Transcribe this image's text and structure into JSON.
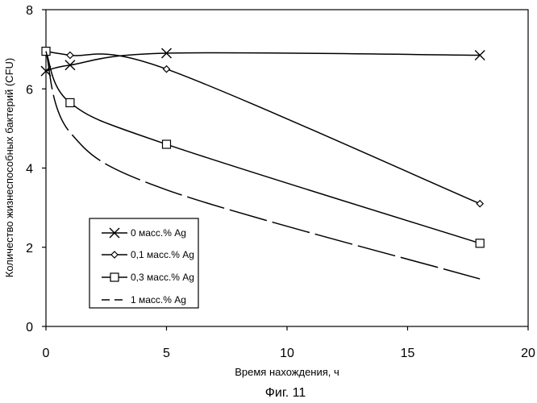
{
  "chart_data": {
    "type": "line",
    "caption": "Фиг. 11",
    "xlabel": "Время нахождения, ч",
    "ylabel": "Количество жизнеспособных бактерий (CFU)",
    "xlim": [
      0,
      20
    ],
    "ylim": [
      0,
      8
    ],
    "xticks": [
      0,
      5,
      10,
      15,
      20
    ],
    "yticks": [
      0,
      2,
      4,
      6,
      8
    ],
    "grid": false,
    "legend_position": "bottom-left",
    "series": [
      {
        "name": "0 масс.% Ag",
        "marker": "x",
        "x": [
          0,
          1,
          5,
          18
        ],
        "y": [
          6.45,
          6.6,
          6.9,
          6.85
        ]
      },
      {
        "name": "0,1 масс.% Ag",
        "marker": "diamond",
        "x": [
          0,
          1,
          5,
          18
        ],
        "y": [
          6.95,
          6.85,
          6.5,
          3.1
        ]
      },
      {
        "name": "0,3 масс.% Ag",
        "marker": "square",
        "x": [
          0,
          1,
          5,
          18
        ],
        "y": [
          6.95,
          5.65,
          4.6,
          2.1
        ]
      },
      {
        "name": "1 масс.% Ag",
        "marker": "none",
        "dashed": true,
        "x": [
          0,
          1,
          5,
          18
        ],
        "y": [
          6.95,
          4.9,
          3.45,
          1.2
        ]
      }
    ]
  }
}
